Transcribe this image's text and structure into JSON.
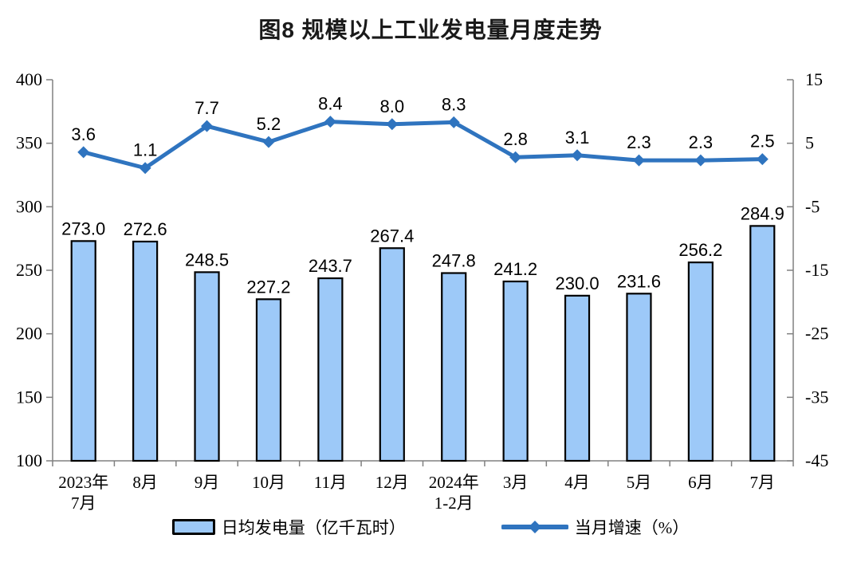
{
  "page": {
    "title": "图8  规模以上工业发电量月度走势"
  },
  "colors": {
    "bar_fill": "#9DC9F8",
    "bar_border": "#000000",
    "line": "#2F74BF",
    "axis": "#808080",
    "label_text": "#000000"
  },
  "legend": {
    "bar_label": "日均发电量（亿千瓦时）",
    "line_label": "当月增速（%）"
  },
  "chart_data": {
    "type": "bar",
    "subtype": "combo-bar-line-dual-axis",
    "title": "图8  规模以上工业发电量月度走势",
    "categories": [
      "2023年7月",
      "8月",
      "9月",
      "10月",
      "11月",
      "12月",
      "2024年1-2月",
      "3月",
      "4月",
      "5月",
      "6月",
      "7月"
    ],
    "category_display_lines": [
      [
        "2023年",
        "7月"
      ],
      [
        "8月"
      ],
      [
        "9月"
      ],
      [
        "10月"
      ],
      [
        "11月"
      ],
      [
        "12月"
      ],
      [
        "2024年",
        "1-2月"
      ],
      [
        "3月"
      ],
      [
        "4月"
      ],
      [
        "5月"
      ],
      [
        "6月"
      ],
      [
        "7月"
      ]
    ],
    "series": [
      {
        "name": "日均发电量（亿千瓦时）",
        "type": "bar",
        "axis": "left",
        "decimals": 1,
        "values": [
          273.0,
          272.6,
          248.5,
          227.2,
          243.7,
          267.4,
          247.8,
          241.2,
          230.0,
          231.6,
          256.2,
          284.9
        ]
      },
      {
        "name": "当月增速（%）",
        "type": "line",
        "axis": "right",
        "decimals": 1,
        "values": [
          3.6,
          1.1,
          7.7,
          5.2,
          8.4,
          8.0,
          8.3,
          2.8,
          3.1,
          2.3,
          2.3,
          2.5
        ]
      }
    ],
    "left_axis": {
      "min": 100,
      "max": 400,
      "ticks": [
        400,
        350,
        300,
        250,
        200,
        150,
        100
      ]
    },
    "right_axis": {
      "min": -45,
      "max": 15,
      "ticks": [
        15,
        5,
        -5,
        -15,
        -25,
        -35,
        -45
      ]
    },
    "grid": false,
    "legend_position": "bottom",
    "data_labels": true
  }
}
